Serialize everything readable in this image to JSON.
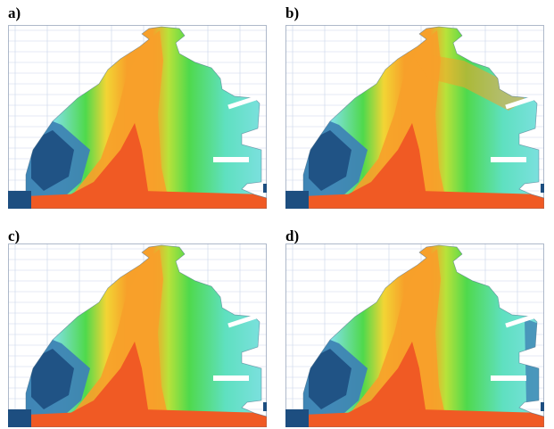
{
  "panels": [
    {
      "id": "a",
      "label": "a)"
    },
    {
      "id": "b",
      "label": "b)"
    },
    {
      "id": "c",
      "label": "c)"
    },
    {
      "id": "d",
      "label": "d)"
    }
  ],
  "colors": {
    "grid": "#c9d6ea",
    "deep_blue": "#1d4e80",
    "mid_blue": "#3e84b4",
    "light_cyan": "#7fe0e2",
    "aqua": "#5fe0c0",
    "green": "#4fd94c",
    "yellow_green": "#b8e23a",
    "yellow": "#f2d534",
    "orange": "#f7a02a",
    "red_orange": "#f05a24"
  }
}
